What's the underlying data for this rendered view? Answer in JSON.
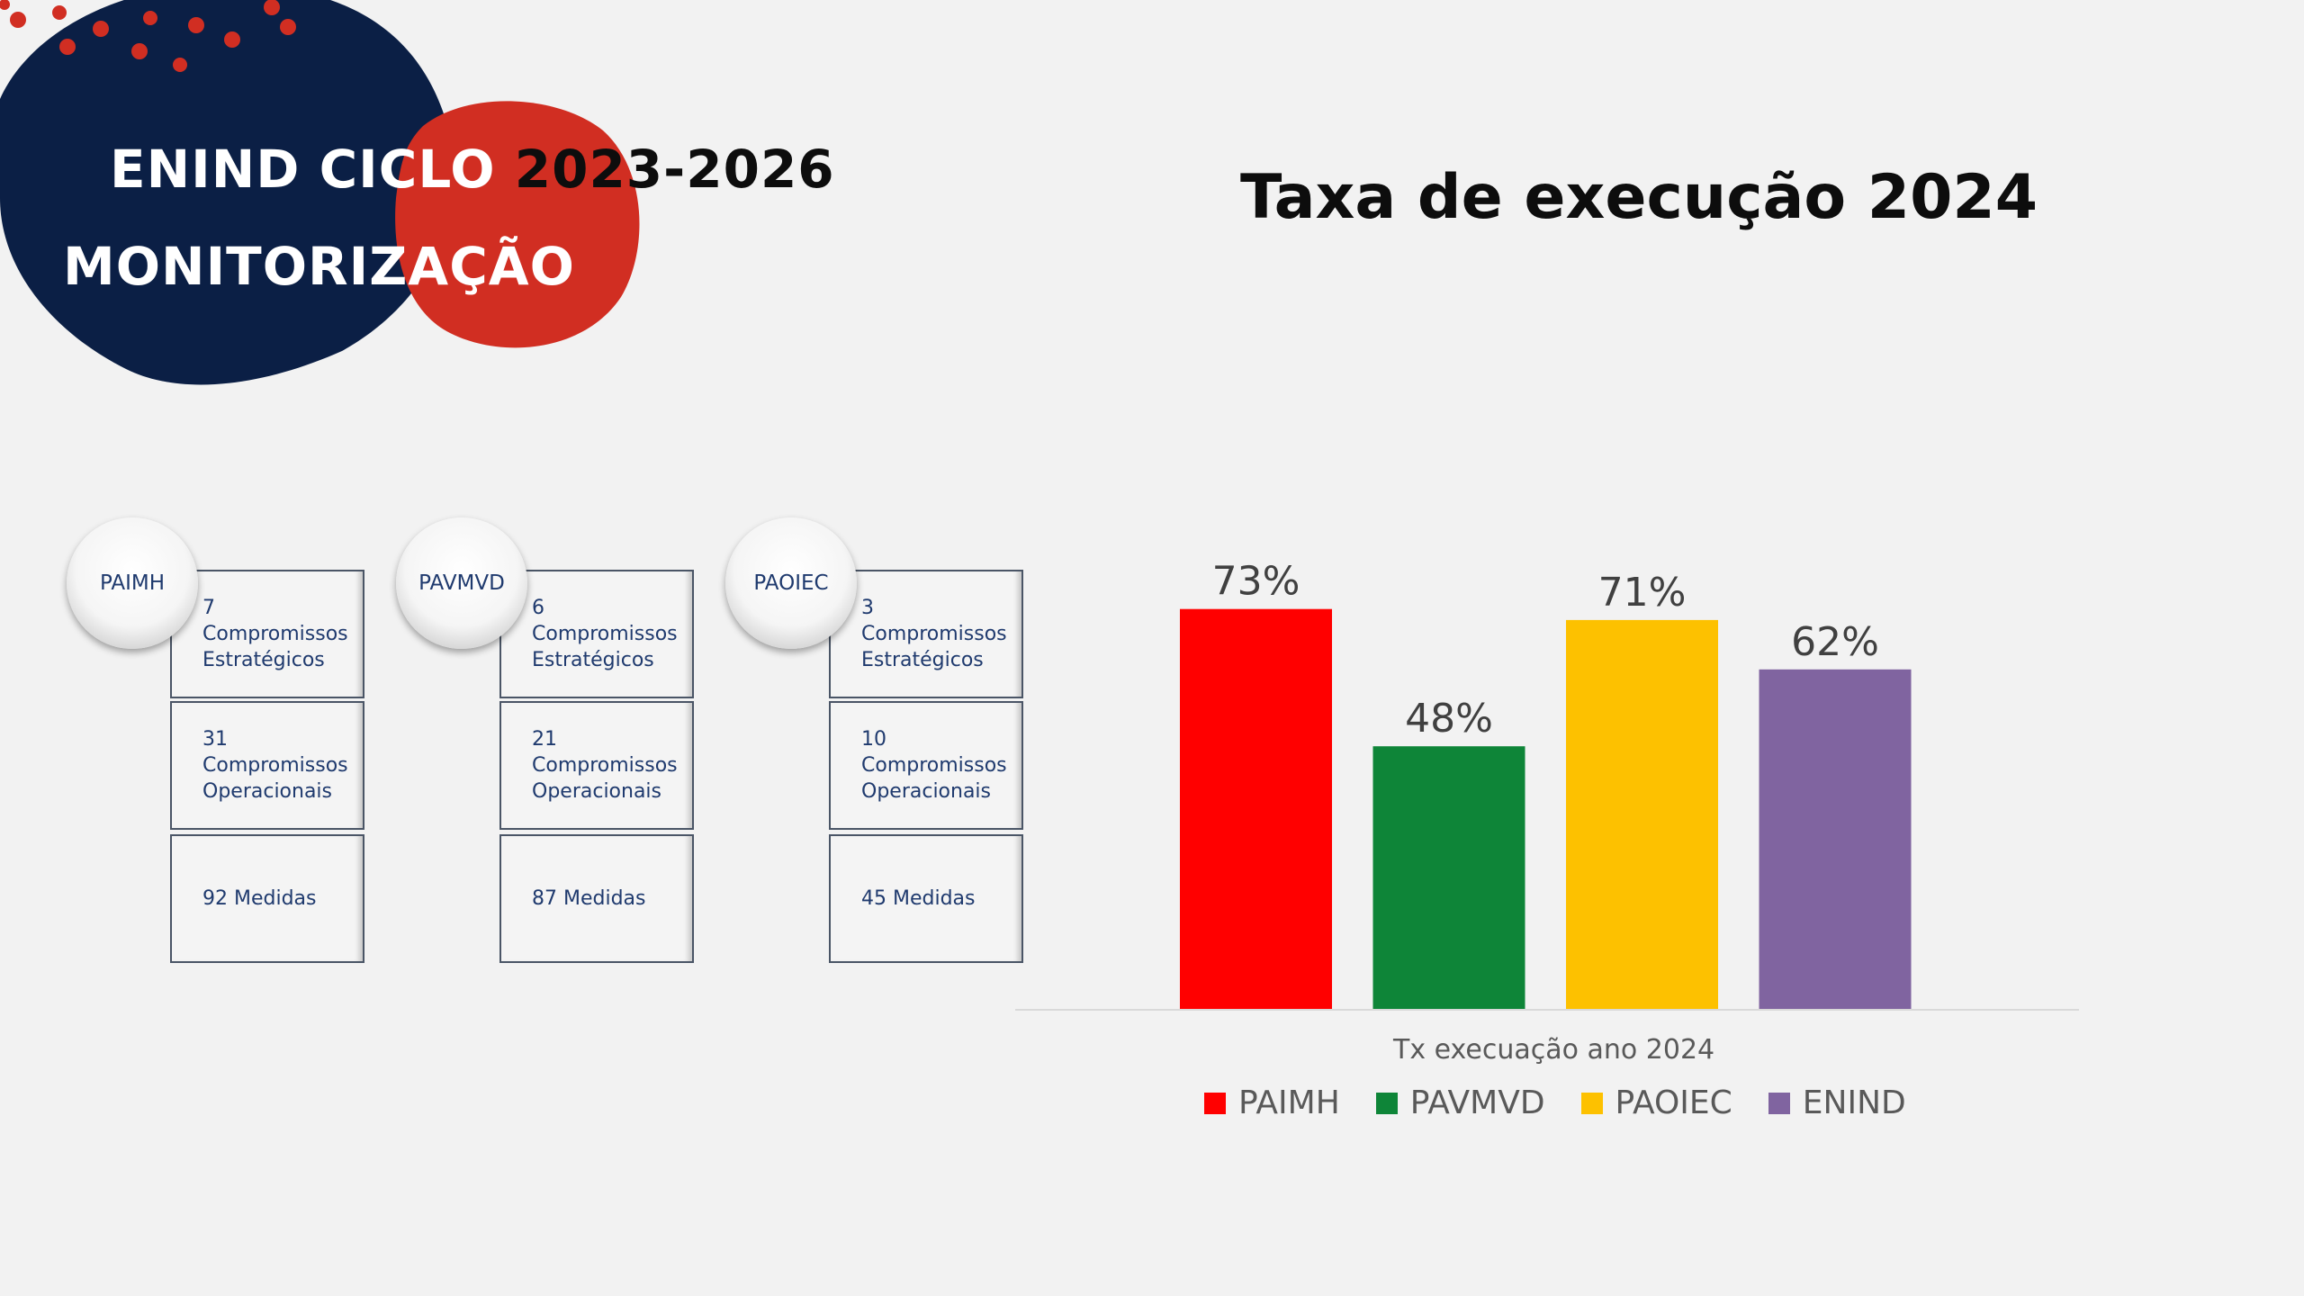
{
  "header": {
    "title_line1_part1": "ENIND  CICL",
    "title_line1_part2": "O",
    "title_line1_part3": " 2023-2026",
    "title_line2": "MONITORIZAÇÃO"
  },
  "colors": {
    "navy": "#0b1f45",
    "red_blob": "#d12e22",
    "dots": "#d12e22"
  },
  "plans": [
    {
      "name": "PAIMH",
      "boxes": [
        "7\nCompromissos\nEstratégicos",
        "31\nCompromissos\nOperacionais",
        "92 Medidas"
      ]
    },
    {
      "name": "PAVMVD",
      "boxes": [
        "6\nCompromissos\nEstratégicos",
        "21\nCompromissos\nOperacionais",
        "87 Medidas"
      ]
    },
    {
      "name": "PAOIEC",
      "boxes": [
        "3\nCompromissos\nEstratégicos",
        "10\nCompromissos\nOperacionais",
        "45 Medidas"
      ]
    }
  ],
  "chart_data": {
    "type": "bar",
    "title": "Taxa de execução 2024",
    "xlabel": "Tx execuação ano 2024",
    "ylabel": "",
    "categories": [
      "Tx execuação ano 2024"
    ],
    "series": [
      {
        "name": "PAIMH",
        "values": [
          0.73
        ],
        "label": "73%",
        "color": "#ff0000"
      },
      {
        "name": "PAVMVD",
        "values": [
          0.48
        ],
        "label": "48%",
        "color": "#0e8538"
      },
      {
        "name": "PAOIEC",
        "values": [
          0.71
        ],
        "label": "71%",
        "color": "#fdc100"
      },
      {
        "name": "ENIND",
        "values": [
          0.62
        ],
        "label": "62%",
        "color": "#8064a0"
      }
    ],
    "ylim": [
      0,
      1
    ],
    "grid": false,
    "legend_position": "bottom"
  }
}
